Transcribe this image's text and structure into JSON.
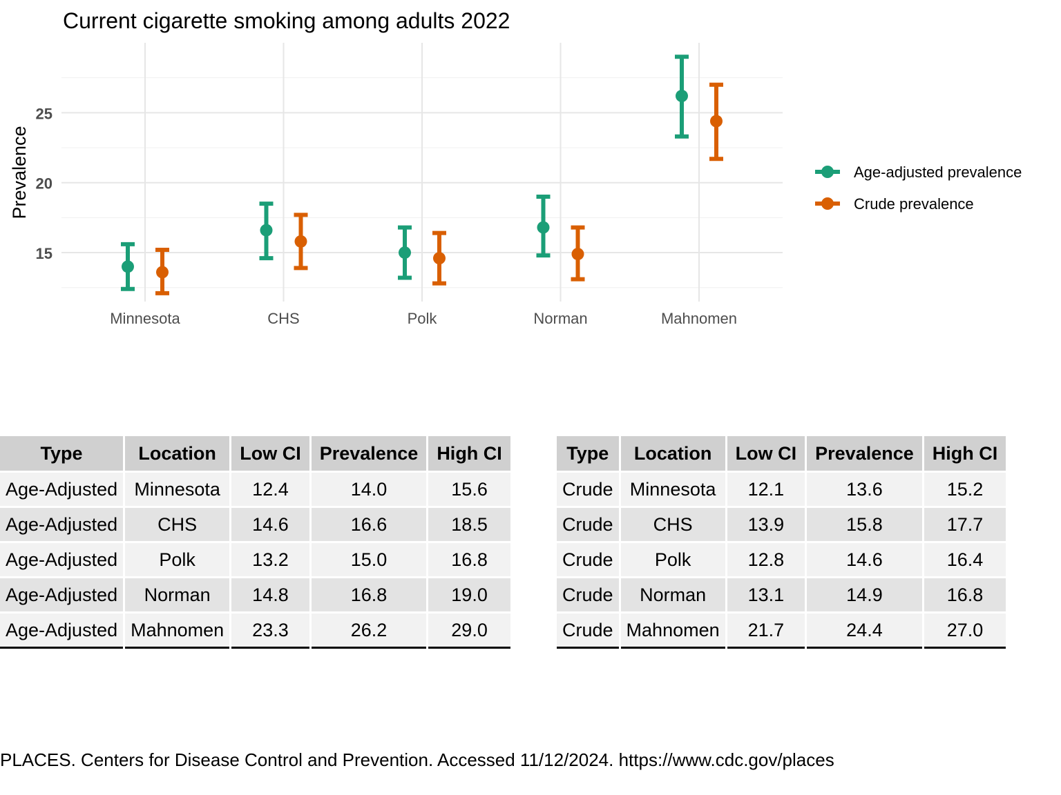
{
  "chart_data": {
    "type": "errorbar",
    "title": "Current cigarette smoking among adults 2022",
    "xlabel": "",
    "ylabel": "Prevalence",
    "categories": [
      "Minnesota",
      "CHS",
      "Polk",
      "Norman",
      "Mahnomen"
    ],
    "ylim": [
      11.5,
      30.0
    ],
    "yticks": [
      15,
      20,
      25
    ],
    "grid": true,
    "legend_position": "right",
    "series": [
      {
        "name": "Age-adjusted prevalence",
        "color": "#1b9e77",
        "values": [
          14.0,
          16.6,
          15.0,
          16.8,
          26.2
        ],
        "low": [
          12.4,
          14.6,
          13.2,
          14.8,
          23.3
        ],
        "high": [
          15.6,
          18.5,
          16.8,
          19.0,
          29.0
        ]
      },
      {
        "name": "Crude prevalence",
        "color": "#d95f02",
        "values": [
          13.6,
          15.8,
          14.6,
          14.9,
          24.4
        ],
        "low": [
          12.1,
          13.9,
          12.8,
          13.1,
          21.7
        ],
        "high": [
          15.2,
          17.7,
          16.4,
          16.8,
          27.0
        ]
      }
    ]
  },
  "tables": {
    "age_adjusted": {
      "headers": [
        "Type",
        "Location",
        "Low CI",
        "Prevalence",
        "High CI"
      ],
      "rows": [
        [
          "Age-Adjusted",
          "Minnesota",
          "12.4",
          "14.0",
          "15.6"
        ],
        [
          "Age-Adjusted",
          "CHS",
          "14.6",
          "16.6",
          "18.5"
        ],
        [
          "Age-Adjusted",
          "Polk",
          "13.2",
          "15.0",
          "16.8"
        ],
        [
          "Age-Adjusted",
          "Norman",
          "14.8",
          "16.8",
          "19.0"
        ],
        [
          "Age-Adjusted",
          "Mahnomen",
          "23.3",
          "26.2",
          "29.0"
        ]
      ]
    },
    "crude": {
      "headers": [
        "Type",
        "Location",
        "Low CI",
        "Prevalence",
        "High CI"
      ],
      "rows": [
        [
          "Crude",
          "Minnesota",
          "12.1",
          "13.6",
          "15.2"
        ],
        [
          "Crude",
          "CHS",
          "13.9",
          "15.8",
          "17.7"
        ],
        [
          "Crude",
          "Polk",
          "12.8",
          "14.6",
          "16.4"
        ],
        [
          "Crude",
          "Norman",
          "13.1",
          "14.9",
          "16.8"
        ],
        [
          "Crude",
          "Mahnomen",
          "21.7",
          "24.4",
          "27.0"
        ]
      ]
    }
  },
  "caption": "PLACES. Centers for Disease Control and Prevention. Accessed 11/12/2024. https://www.cdc.gov/places"
}
